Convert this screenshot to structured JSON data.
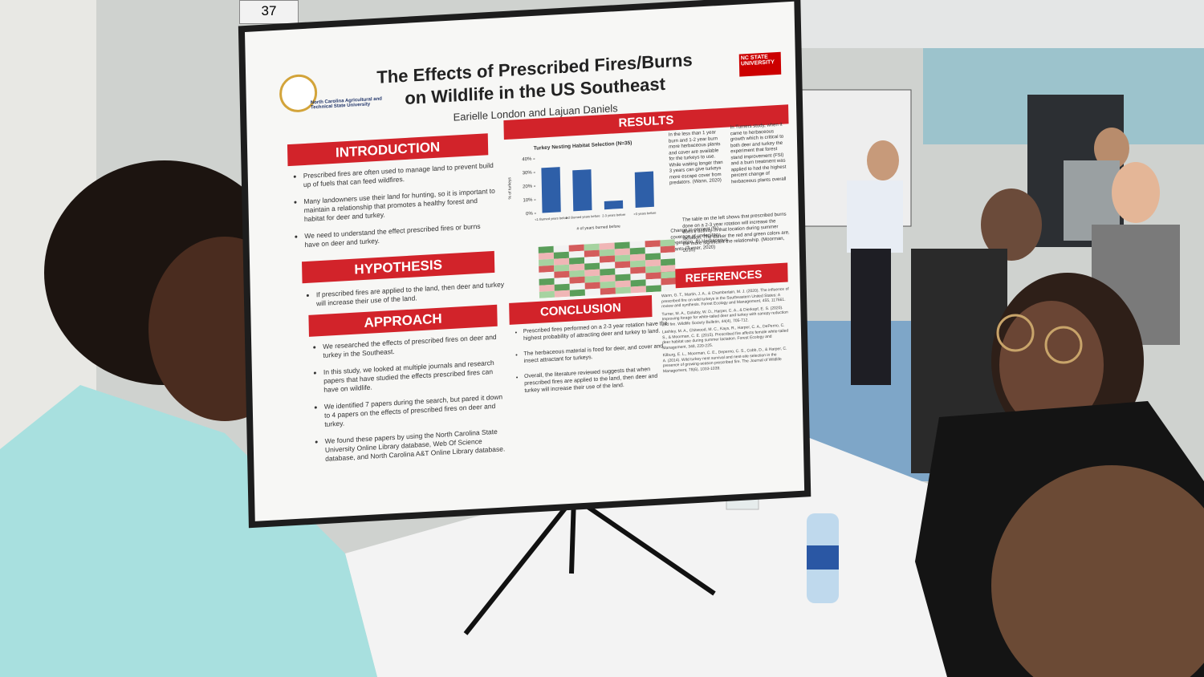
{
  "booth_number": "37",
  "poster": {
    "institution": "North Carolina Agricultural and Technical State University",
    "logo_text": "NC STATE UNIVERSITY",
    "title": "The Effects of Prescribed Fires/Burns on Wildlife in the US Southeast",
    "authors": "Earielle London and Lajuan Daniels",
    "introduction": {
      "heading": "INTRODUCTION",
      "bullets": [
        "Prescribed fires are often used to manage land to prevent build up of fuels that can feed wildfires.",
        "Many landowners use their land for hunting, so it is important to maintain a relationship that promotes a healthy forest and habitat for deer and turkey.",
        "We need to understand the effect prescribed fires or burns have on deer and turkey."
      ]
    },
    "hypothesis": {
      "heading": "HYPOTHESIS",
      "bullets": [
        "If prescribed fires are applied to the land, then deer and turkey will increase their use of the land."
      ]
    },
    "approach": {
      "heading": "APPROACH",
      "bullets": [
        "We researched the effects of prescribed fires on deer and turkey in the Southeast.",
        "In this study, we looked at multiple journals and research papers that have studied the effects prescribed fires can have on wildlife.",
        "We identified 7 papers during the search, but pared it down to 4 papers on the effects of prescribed fires on deer and turkey.",
        "We found these papers by using the North Carolina State University Online Library database, Web Of Science database, and North Carolina A&T Online Library database."
      ]
    },
    "results": {
      "heading": "RESULTS",
      "chart": {
        "type": "bar",
        "title": "Turkey Nesting Habitat Selection (N=35)",
        "categories": [
          "<1 Burned years before",
          "1-2 Burned years before",
          "2-3 years before",
          ">3 years before"
        ],
        "values": [
          33,
          30,
          6,
          26
        ],
        "color": "#2e5fa8",
        "ylim": [
          0,
          40
        ],
        "yticks": [
          {
            "value": 0,
            "label": "0%"
          },
          {
            "value": 10,
            "label": "10%"
          },
          {
            "value": 20,
            "label": "20%"
          },
          {
            "value": 30,
            "label": "30%"
          },
          {
            "value": 40,
            "label": "40%"
          }
        ],
        "x_label": "# of years burned before",
        "y_label": "% of turkeys"
      },
      "notes": [
        "In the less than 1 year burn and 1-2 year burn more herbaceous plants and cover are available for the turkeys to use. While waiting longer than 3 years can give turkeys more escape cover from predators. (Wann, 2020)",
        "Change in percent (%) coverage of understory vegetation. B) Herbaceous plants (Turner, 2020)",
        "In Turners study, when it came to herbaceous growth which is critical to both deer and turkey the experiment that forest stand improvement (FSI) and a burn treatment was applied to had the highest percent change of herbaceous plants overall",
        "The table on the left shows that prescribed burns done on a 2-3 year rotation will increase the does's activity in that location during summer lactation. The darker the red and green colors are, the more significant the relationship. (Moorman, 2015)"
      ]
    },
    "conclusion": {
      "heading": "CONCLUSION",
      "bullets": [
        "Prescribed fires performed on a 2-3 year rotation have the highest probability of attracting deer and turkey to land.",
        "The herbaceous material is food for deer, and cover and insect attractant for turkeys.",
        "Overall, the literature reviewed suggests that when prescribed fires are applied to the land, then deer and turkey will increase their use of the land."
      ]
    },
    "references": {
      "heading": "REFERENCES",
      "items": [
        "Wann, G. T., Martin, J. A., & Chamberlain, M. J. (2020). The influence of prescribed fire on wild turkeys in the Southeastern United States: A review and synthesis. Forest Ecology and Management, 455, 117661.",
        "Turner, M. A., Golubiy, W. D., Harper, C. A., & Dierkopf, E. S. (2020). Improving forage for white-tailed deer and turkey with canopy reduction and fire. Wildlife Society Bulletin, 44(4), 705-712.",
        "Lashley, M. A., Chitwood, M. C., Kays, R., Harper, C. A., DePerno, C. S., & Moorman, C. E. (2015). Prescribed fire affects female white-tailed deer habitat use during summer lactation. Forest Ecology and Management, 348, 220-225.",
        "Kilburg, E. L., Moorman, C. E., Deperno, C. S., Cobb, D., & Harper, C. A. (2014). Wild turkey nest survival and nest-site selection in the presence of growing-season prescribed fire. The Journal of Wildlife Management, 78(6), 1033-1039."
      ]
    }
  }
}
